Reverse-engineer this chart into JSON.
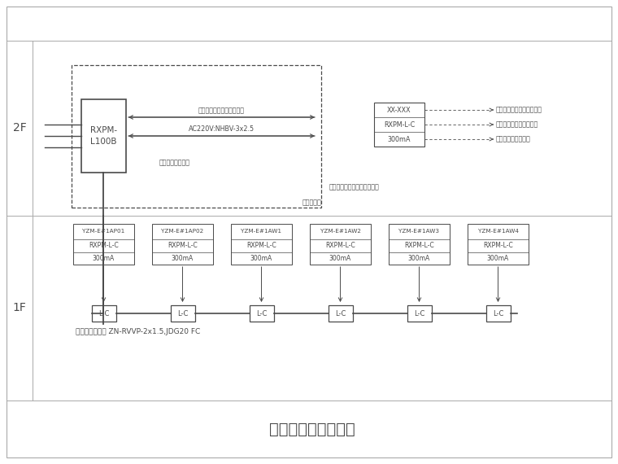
{
  "title": "电气火灾监控系统图",
  "title_fontsize": 14,
  "bg_color": "#ffffff",
  "line_color": "#4a4a4a",
  "gray_color": "#aaaaaa",
  "floor_2f_label": "2F",
  "floor_1f_label": "1F",
  "main_box_label": "RXPM-\nL100B",
  "arrow_label1": "接消防控制室图形显示装置",
  "arrow_label2": "AC220V:NHBV-3x2.5",
  "label_main_host": "电气火灾监控主机",
  "label_fire_ctrl_room": "消防控制室",
  "label_fire_ctrl_location": "消防控制室设在原住民区一层",
  "legend_box_rows": [
    "XX-XXX",
    "RXPM-L-C",
    "300mA"
  ],
  "legend_desc1": "被监控的配电箱（柜）代号",
  "legend_desc2": "电气火灾监控探测器型号",
  "legend_desc3": "泄露电流报警设定值",
  "cable_label": "电气火灾监控线 ZN-RVVP-2x1.5,JDG20 FC",
  "sensor_ids": [
    "YZM-E#1AP01",
    "YZM-E#1AP02",
    "YZM-E#1AW1",
    "YZM-E#1AW2",
    "YZM-E#1AW3",
    "YZM-E#1AW4"
  ],
  "sensor_model": "RXPM-L-C",
  "sensor_val": "300mA"
}
